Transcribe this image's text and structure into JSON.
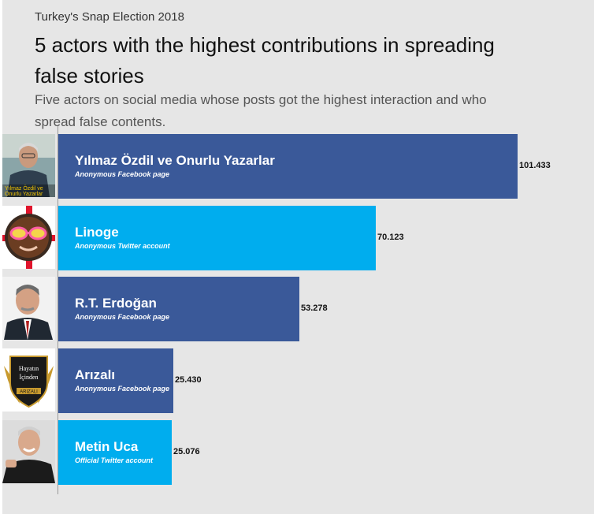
{
  "header": {
    "kicker": "Turkey's Snap Election 2018",
    "title": "5 actors with the highest contributions in spreading false stories",
    "subtitle": "Five actors on social media whose posts got the highest interaction and who spread false contents."
  },
  "colors": {
    "facebook": "#3a5999",
    "twitter": "#00adee",
    "background": "#e6e6e6"
  },
  "chart_data": {
    "type": "bar",
    "orientation": "horizontal",
    "categories": [
      "Yılmaz Özdil ve Onurlu Yazarlar",
      "Linoge",
      "R.T. Erdoğan",
      "Arızalı",
      "Metin Uca"
    ],
    "values": [
      101.433,
      70.123,
      53.278,
      25.43,
      25.076
    ],
    "value_labels": [
      "101.433",
      "70.123",
      "53.278",
      "25.430",
      "25.076"
    ],
    "account_types": [
      "Anonymous Facebook page",
      "Anonymous Twitter account",
      "Anonymous Facebook page",
      "Anonymous Facebook page",
      "Official Twitter account"
    ],
    "platforms": [
      "facebook",
      "twitter",
      "facebook",
      "facebook",
      "twitter"
    ],
    "photos": [
      "man-portrait-icon",
      "sunglasses-avatar-icon",
      "politician-portrait-icon",
      "winged-shield-logo-icon",
      "smiling-man-portrait-icon"
    ],
    "logo_text": [
      "Yılmaz Özdil ve Onurlu Yazarlar",
      "",
      "",
      "Hayatın İçinden ARIZALI",
      ""
    ],
    "xlim": [
      0,
      101.433
    ],
    "grid": false,
    "legend": "none"
  }
}
